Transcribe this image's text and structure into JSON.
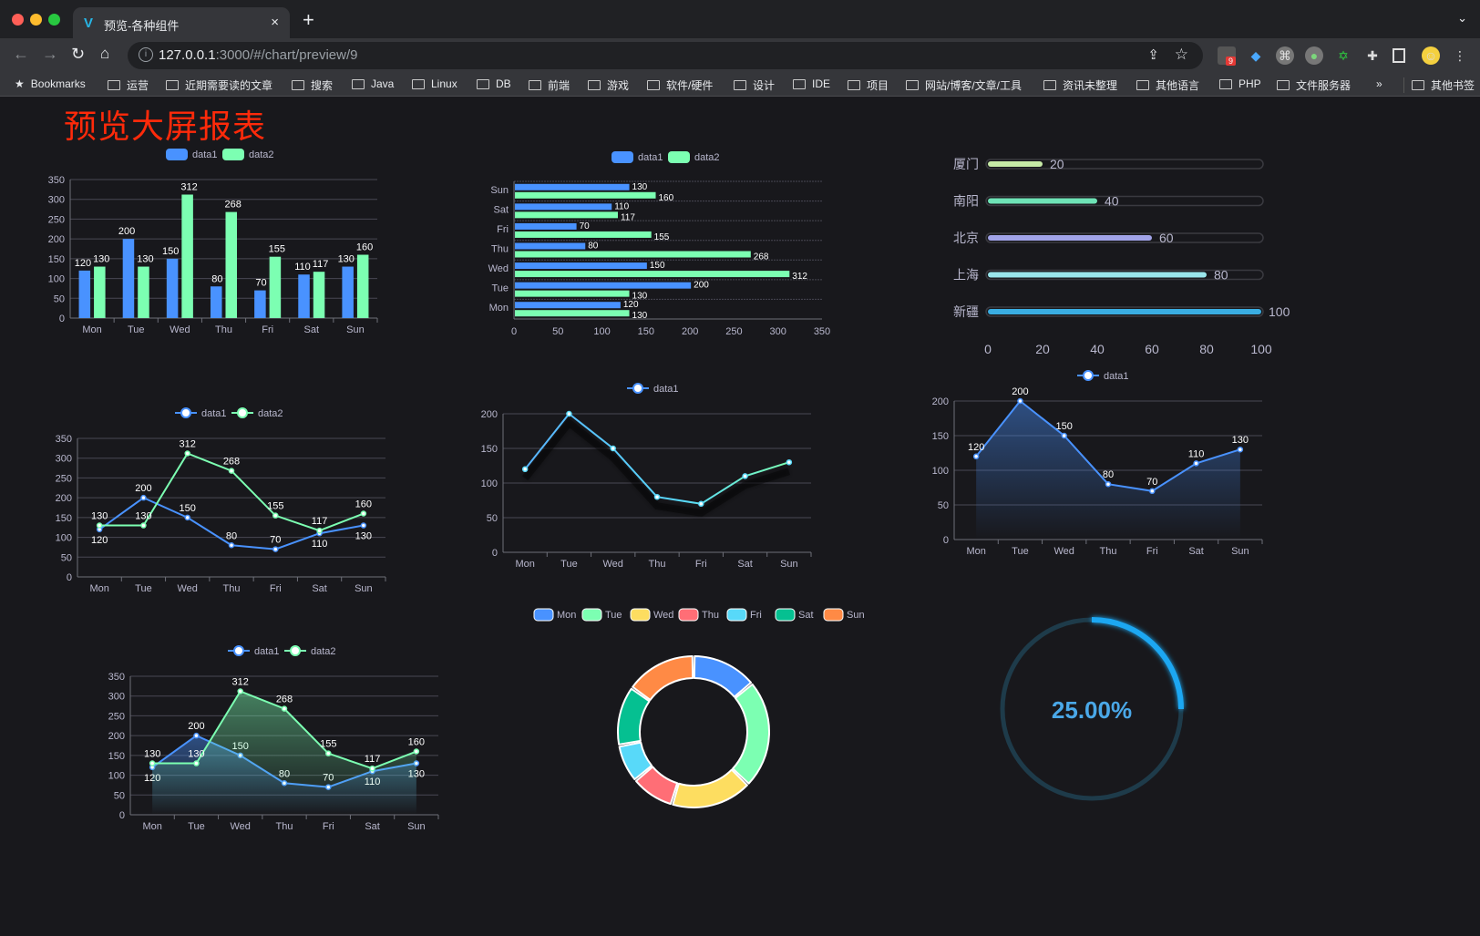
{
  "browser": {
    "tab_title": "预览-各种组件",
    "new_tab": "+",
    "tab_close": "×",
    "url_host": "127.0.0.1",
    "url_rest": ":3000/#/chart/preview/9",
    "extension_badge": "9",
    "bookmarks_label": "Bookmarks",
    "bookmark_folders": [
      "运营",
      "近期需要读的文章",
      "搜索",
      "Java",
      "Linux",
      "DB",
      "前端",
      "游戏",
      "软件/硬件",
      "设计",
      "IDE",
      "项目",
      "网站/博客/文章/工具",
      "资讯未整理",
      "其他语言",
      "PHP",
      "文件服务器"
    ],
    "more": "»",
    "other_bookmarks": "其他书签"
  },
  "page": {
    "title": "预览大屏报表"
  },
  "colors": {
    "background": "#18181c",
    "data1": "#4992ff",
    "data2": "#7cffb2",
    "title": "#ff2a0a",
    "pie": [
      "#4992ff",
      "#7cffb2",
      "#fddd60",
      "#ff6e76",
      "#58d9f9",
      "#05c091",
      "#ff8a45"
    ],
    "progress": [
      "#c6eaa6",
      "#6ee3b6",
      "#a1a3e8",
      "#9ae6ec",
      "#3aade2"
    ],
    "gauge": "#1fa7f2"
  },
  "chart_data": [
    {
      "type": "bar",
      "categories": [
        "Mon",
        "Tue",
        "Wed",
        "Thu",
        "Fri",
        "Sat",
        "Sun"
      ],
      "series": [
        {
          "name": "data1",
          "values": [
            120,
            200,
            150,
            80,
            70,
            110,
            130
          ]
        },
        {
          "name": "data2",
          "values": [
            130,
            130,
            312,
            268,
            155,
            117,
            160
          ]
        }
      ],
      "ylim": [
        0,
        350
      ],
      "yticks": [
        0,
        50,
        100,
        150,
        200,
        250,
        300,
        350
      ],
      "legend": "top",
      "grid": true,
      "data_labels": true
    },
    {
      "type": "bar",
      "orientation": "horizontal",
      "categories": [
        "Mon",
        "Tue",
        "Wed",
        "Thu",
        "Fri",
        "Sat",
        "Sun"
      ],
      "series": [
        {
          "name": "data1",
          "values": [
            120,
            200,
            150,
            80,
            70,
            110,
            130
          ]
        },
        {
          "name": "data2",
          "values": [
            130,
            130,
            312,
            268,
            155,
            117,
            160
          ]
        }
      ],
      "xlim": [
        0,
        350
      ],
      "xticks": [
        0,
        50,
        100,
        150,
        200,
        250,
        300,
        350
      ],
      "legend": "top",
      "grid": true,
      "data_labels": true
    },
    {
      "type": "bar",
      "orientation": "horizontal",
      "style": "progress",
      "categories": [
        "新疆",
        "上海",
        "北京",
        "南阳",
        "厦门"
      ],
      "values": [
        100,
        80,
        60,
        40,
        20
      ],
      "xlim": [
        0,
        100
      ],
      "xticks": [
        0,
        20,
        40,
        60,
        80,
        100
      ],
      "data_labels": true
    },
    {
      "type": "line",
      "categories": [
        "Mon",
        "Tue",
        "Wed",
        "Thu",
        "Fri",
        "Sat",
        "Sun"
      ],
      "series": [
        {
          "name": "data1",
          "values": [
            120,
            200,
            150,
            80,
            70,
            110,
            130
          ]
        },
        {
          "name": "data2",
          "values": [
            130,
            130,
            312,
            268,
            155,
            117,
            160
          ]
        }
      ],
      "ylim": [
        0,
        350
      ],
      "yticks": [
        0,
        50,
        100,
        150,
        200,
        250,
        300,
        350
      ],
      "legend": "top",
      "grid": true,
      "data_labels": true
    },
    {
      "type": "line",
      "categories": [
        "Mon",
        "Tue",
        "Wed",
        "Thu",
        "Fri",
        "Sat",
        "Sun"
      ],
      "series": [
        {
          "name": "data1",
          "values": [
            120,
            200,
            150,
            80,
            70,
            110,
            130
          ]
        }
      ],
      "ylim": [
        0,
        200
      ],
      "yticks": [
        0,
        50,
        100,
        150,
        200
      ],
      "legend": "top",
      "grid": true,
      "data_labels": false
    },
    {
      "type": "area",
      "categories": [
        "Mon",
        "Tue",
        "Wed",
        "Thu",
        "Fri",
        "Sat",
        "Sun"
      ],
      "series": [
        {
          "name": "data1",
          "values": [
            120,
            200,
            150,
            80,
            70,
            110,
            130
          ]
        }
      ],
      "ylim": [
        0,
        200
      ],
      "yticks": [
        0,
        50,
        100,
        150,
        200
      ],
      "legend": "top",
      "grid": true,
      "data_labels": true
    },
    {
      "type": "area",
      "categories": [
        "Mon",
        "Tue",
        "Wed",
        "Thu",
        "Fri",
        "Sat",
        "Sun"
      ],
      "series": [
        {
          "name": "data1",
          "values": [
            120,
            200,
            150,
            80,
            70,
            110,
            130
          ]
        },
        {
          "name": "data2",
          "values": [
            130,
            130,
            312,
            268,
            155,
            117,
            160
          ]
        }
      ],
      "ylim": [
        0,
        350
      ],
      "yticks": [
        0,
        50,
        100,
        150,
        200,
        250,
        300,
        350
      ],
      "legend": "top",
      "grid": true,
      "data_labels": true
    },
    {
      "type": "pie",
      "style": "donut",
      "categories": [
        "Mon",
        "Tue",
        "Wed",
        "Thu",
        "Fri",
        "Sat",
        "Sun"
      ],
      "values": [
        120,
        200,
        150,
        80,
        70,
        110,
        130
      ],
      "legend": "top"
    },
    {
      "type": "gauge",
      "value": 25,
      "max": 100,
      "label": "25.00%"
    }
  ]
}
